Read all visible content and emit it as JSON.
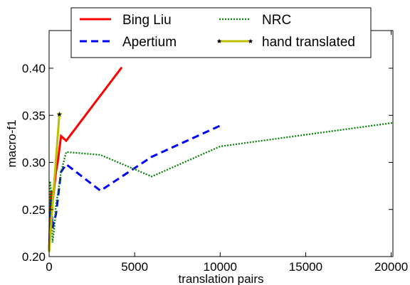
{
  "chart_data": {
    "type": "line",
    "title": "",
    "xlabel": "translation pairs",
    "ylabel": "macro-f1",
    "xlim": [
      0,
      20100
    ],
    "ylim": [
      0.2,
      0.44
    ],
    "xticks": [
      0,
      5000,
      10000,
      15000,
      20000
    ],
    "yticks": [
      0.2,
      0.25,
      0.3,
      0.35,
      0.4
    ],
    "xtick_labels": [
      "0",
      "5000",
      "10000",
      "15000",
      "20000"
    ],
    "ytick_labels": [
      "0.20",
      "0.25",
      "0.30",
      "0.35",
      "0.40"
    ],
    "grid": false,
    "legend_position": "top",
    "series": [
      {
        "name": "Bing Liu",
        "color": "#ff0000",
        "style": "solid",
        "x": [
          0,
          60,
          120,
          250,
          400,
          500,
          700,
          1000,
          4250
        ],
        "y": [
          0.205,
          0.24,
          0.27,
          0.265,
          0.29,
          0.3,
          0.328,
          0.323,
          0.401
        ]
      },
      {
        "name": "Apertium",
        "color": "#0000ff",
        "style": "dashed",
        "x": [
          0,
          60,
          120,
          200,
          300,
          400,
          500,
          700,
          1000,
          3000,
          6000,
          10000
        ],
        "y": [
          0.205,
          0.235,
          0.26,
          0.23,
          0.238,
          0.245,
          0.26,
          0.29,
          0.298,
          0.27,
          0.306,
          0.339
        ]
      },
      {
        "name": "NRC",
        "color": "#008000",
        "style": "dotted",
        "x": [
          0,
          60,
          120,
          200,
          300,
          400,
          500,
          700,
          1000,
          3000,
          6000,
          10000,
          20100
        ],
        "y": [
          0.205,
          0.28,
          0.27,
          0.215,
          0.23,
          0.255,
          0.265,
          0.29,
          0.311,
          0.308,
          0.285,
          0.317,
          0.342
        ]
      },
      {
        "name": "hand translated",
        "color": "#bfbf00",
        "style": "solid",
        "marker": "star",
        "x": [
          0,
          200,
          600
        ],
        "y": [
          0.205,
          0.255,
          0.351
        ]
      }
    ]
  }
}
